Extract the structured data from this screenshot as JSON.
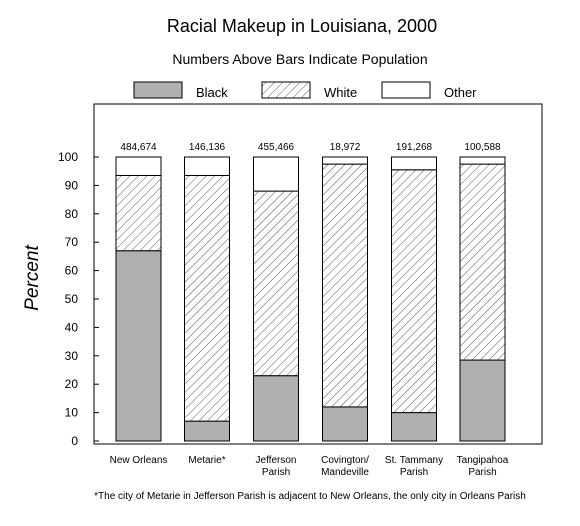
{
  "chart_data": {
    "type": "bar",
    "stacked": true,
    "title": "Racial Makeup in Louisiana, 2000",
    "subtitle": "Numbers Above Bars Indicate Population",
    "ylabel": "Percent",
    "ylim": [
      0,
      100
    ],
    "yticks": [
      "0",
      "10",
      "20",
      "30",
      "40",
      "50",
      "60",
      "70",
      "80",
      "90",
      "100"
    ],
    "categories": [
      [
        "New Orleans"
      ],
      [
        "Metarie*"
      ],
      [
        "Jefferson",
        "Parish"
      ],
      [
        "Covington/",
        "Mandeville"
      ],
      [
        "St. Tammany",
        "Parish"
      ],
      [
        "Tangipahoa",
        "Parish"
      ]
    ],
    "population_labels": [
      "484,674",
      "146,136",
      "455,466",
      "18,972",
      "191,268",
      "100,588"
    ],
    "series": [
      {
        "name": "Black",
        "color": "#b0b0b0",
        "pattern": "solid-gray",
        "values": [
          67,
          7,
          23,
          12,
          10,
          28.5
        ]
      },
      {
        "name": "White",
        "color": "#ffffff",
        "pattern": "diagonal-hatch",
        "values": [
          26.5,
          86.5,
          65,
          85.5,
          85.5,
          69
        ]
      },
      {
        "name": "Other",
        "color": "#ffffff",
        "pattern": "none",
        "values": [
          6.5,
          6.5,
          12,
          2.5,
          4.5,
          2.5
        ]
      }
    ],
    "legend_position": "top",
    "grid": false,
    "footnote": "*The city of Metarie in Jefferson Parish is adjacent to New Orleans, the only city in Orleans Parish"
  }
}
